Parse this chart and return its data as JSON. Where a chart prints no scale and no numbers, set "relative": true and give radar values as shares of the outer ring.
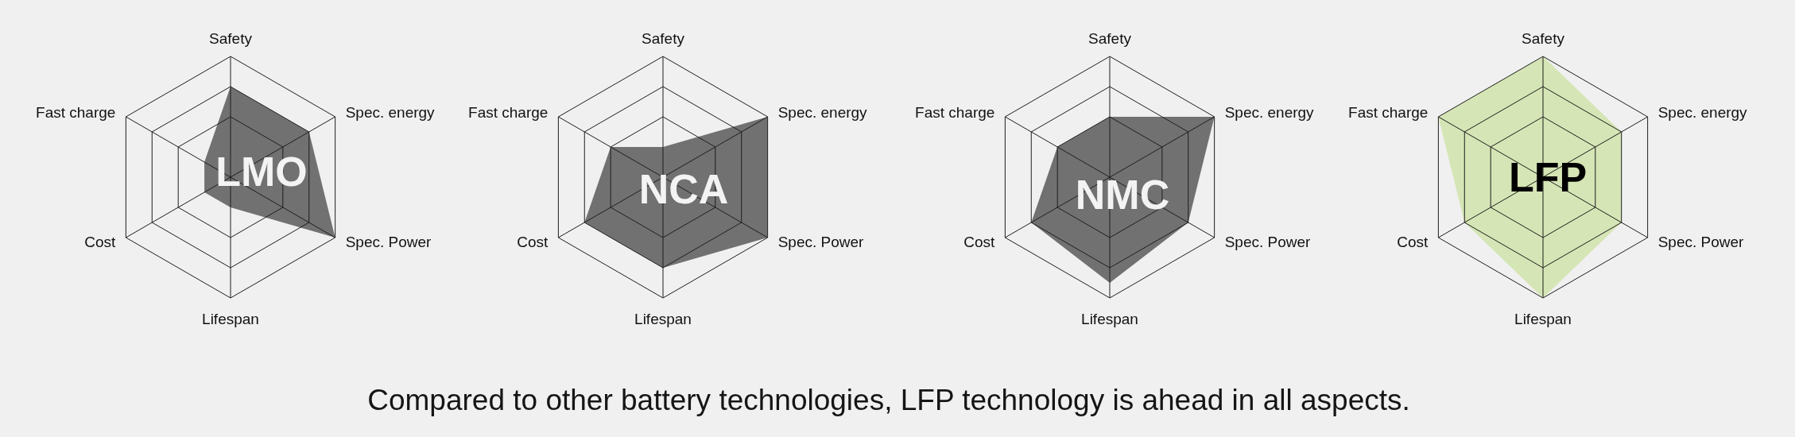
{
  "chart_data": [
    {
      "type": "radar",
      "title": "LMO",
      "categories": [
        "Safety",
        "Spec. energy",
        "Spec. Power",
        "Lifespan",
        "Cost",
        "Fast charge"
      ],
      "relative": true,
      "grid": true,
      "series": [
        {
          "color": "#717171",
          "values": [
            0.75,
            0.75,
            1,
            0.25,
            0.25,
            0.25
          ]
        }
      ]
    },
    {
      "type": "radar",
      "title": "NCA",
      "categories": [
        "Safety",
        "Spec. energy",
        "Spec. Power",
        "Lifespan",
        "Cost",
        "Fast charge"
      ],
      "relative": true,
      "grid": true,
      "series": [
        {
          "color": "#717171",
          "values": [
            0.25,
            1,
            1,
            0.75,
            0.75,
            0.5
          ]
        }
      ]
    },
    {
      "type": "radar",
      "title": "NMC",
      "categories": [
        "Safety",
        "Spec. energy",
        "Spec. Power",
        "Lifespan",
        "Cost",
        "Fast charge"
      ],
      "relative": true,
      "grid": true,
      "series": [
        {
          "color": "#717171",
          "values": [
            0.5,
            1,
            0.75,
            0.875,
            0.75,
            0.5
          ]
        }
      ]
    },
    {
      "type": "radar",
      "title": "LFP",
      "categories": [
        "Safety",
        "Spec. energy",
        "Spec. Power",
        "Lifespan",
        "Cost",
        "Fast charge"
      ],
      "relative": true,
      "grid": true,
      "series": [
        {
          "color": "#d5e5b5",
          "values": [
            1,
            0.75,
            0.75,
            1,
            0.75,
            1
          ]
        }
      ]
    },
    {
      "type": "other",
      "annotations": [
        "Compared to other battery technologies, LFP technology is ahead in all aspects."
      ]
    }
  ]
}
